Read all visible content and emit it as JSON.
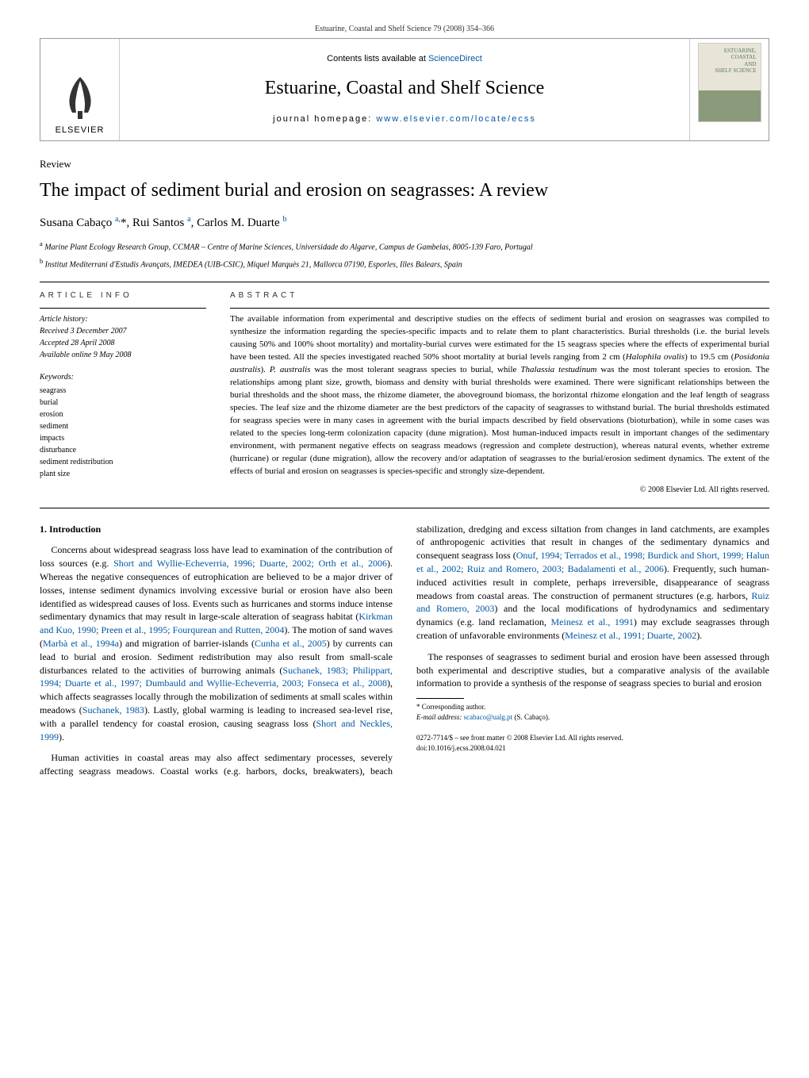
{
  "running_head": "Estuarine, Coastal and Shelf Science 79 (2008) 354–366",
  "header": {
    "contents_prefix": "Contents lists available at ",
    "contents_link": "ScienceDirect",
    "journal_title": "Estuarine, Coastal and Shelf Science",
    "homepage_prefix": "journal homepage: ",
    "homepage_link": "www.elsevier.com/locate/ecss",
    "publisher": "ELSEVIER",
    "cover_text_line1": "ESTUARINE,",
    "cover_text_line2": "COASTAL",
    "cover_text_line3": "AND",
    "cover_text_line4": "SHELF SCIENCE"
  },
  "article_type": "Review",
  "title": "The impact of sediment burial and erosion on seagrasses: A review",
  "authors_html": "Susana Cabaço <sup>a,</sup>*, Rui Santos <sup>a</sup>, Carlos M. Duarte <sup>b</sup>",
  "affiliations": {
    "a": "Marine Plant Ecology Research Group, CCMAR – Centre of Marine Sciences, Universidade do Algarve, Campus de Gambelas, 8005-139 Faro, Portugal",
    "b": "Institut Mediterrani d'Estudis Avançats, IMEDEA (UIB-CSIC), Miquel Marquès 21, Mallorca 07190, Esporles, Illes Balears, Spain"
  },
  "article_info": {
    "heading": "ARTICLE INFO",
    "history_label": "Article history:",
    "received": "Received 3 December 2007",
    "accepted": "Accepted 28 April 2008",
    "online": "Available online 9 May 2008",
    "keywords_label": "Keywords:",
    "keywords": [
      "seagrass",
      "burial",
      "erosion",
      "sediment",
      "impacts",
      "disturbance",
      "sediment redistribution",
      "plant size"
    ]
  },
  "abstract": {
    "heading": "ABSTRACT",
    "text": "The available information from experimental and descriptive studies on the effects of sediment burial and erosion on seagrasses was compiled to synthesize the information regarding the species-specific impacts and to relate them to plant characteristics. Burial thresholds (i.e. the burial levels causing 50% and 100% shoot mortality) and mortality-burial curves were estimated for the 15 seagrass species where the effects of experimental burial have been tested. All the species investigated reached 50% shoot mortality at burial levels ranging from 2 cm (Halophila ovalis) to 19.5 cm (Posidonia australis). P. australis was the most tolerant seagrass species to burial, while Thalassia testudinum was the most tolerant species to erosion. The relationships among plant size, growth, biomass and density with burial thresholds were examined. There were significant relationships between the burial thresholds and the shoot mass, the rhizome diameter, the aboveground biomass, the horizontal rhizome elongation and the leaf length of seagrass species. The leaf size and the rhizome diameter are the best predictors of the capacity of seagrasses to withstand burial. The burial thresholds estimated for seagrass species were in many cases in agreement with the burial impacts described by field observations (bioturbation), while in some cases was related to the species long-term colonization capacity (dune migration). Most human-induced impacts result in important changes of the sedimentary environment, with permanent negative effects on seagrass meadows (regression and complete destruction), whereas natural events, whether extreme (hurricane) or regular (dune migration), allow the recovery and/or adaptation of seagrasses to the burial/erosion sediment dynamics. The extent of the effects of burial and erosion on seagrasses is species-specific and strongly size-dependent.",
    "copyright": "© 2008 Elsevier Ltd. All rights reserved."
  },
  "section1": {
    "heading": "1. Introduction",
    "p1_pre": "Concerns about widespread seagrass loss have lead to examination of the contribution of loss sources (e.g. ",
    "p1_ref1": "Short and Wyllie-Echeverria, 1996; Duarte, 2002; Orth et al., 2006",
    "p1_mid1": "). Whereas the negative consequences of eutrophication are believed to be a major driver of losses, intense sediment dynamics involving excessive burial or erosion have also been identified as widespread causes of loss. Events such as hurricanes and storms induce intense sedimentary dynamics that may result in large-scale alteration of seagrass habitat (",
    "p1_ref2": "Kirkman and Kuo, 1990; Preen et al., 1995; Fourqurean and Rutten, 2004",
    "p1_mid2": "). The motion of sand waves (",
    "p1_ref3": "Marbà et al., 1994a",
    "p1_mid3": ") and migration of barrier-islands (",
    "p1_ref4": "Cunha et al., 2005",
    "p1_mid4": ") by currents can lead to burial and erosion. Sediment redistribution may also result from small-scale disturbances related to the activities of burrowing animals (",
    "p1_ref5": "Suchanek, 1983; Philippart, 1994; Duarte et al., 1997; Dumbauld and Wyllie-Echeverria, 2003; Fonseca et al., 2008",
    "p1_mid5": "), which affects seagrasses locally through the mobilization of sediments at small scales within meadows (",
    "p1_ref6": "Suchanek, 1983",
    "p1_end": "). Lastly,",
    "p1b_pre": "global warming is leading to increased sea-level rise, with a parallel tendency for coastal erosion, causing seagrass loss (",
    "p1b_ref": "Short and Neckles, 1999",
    "p1b_end": ").",
    "p2_pre": "Human activities in coastal areas may also affect sedimentary processes, severely affecting seagrass meadows. Coastal works (e.g. harbors, docks, breakwaters), beach stabilization, dredging and excess siltation from changes in land catchments, are examples of anthropogenic activities that result in changes of the sedimentary dynamics and consequent seagrass loss (",
    "p2_ref1": "Onuf, 1994; Terrados et al., 1998; Burdick and Short, 1999; Halun et al., 2002; Ruiz and Romero, 2003; Badalamenti et al., 2006",
    "p2_mid1": "). Frequently, such human-induced activities result in complete, perhaps irreversible, disappearance of seagrass meadows from coastal areas. The construction of permanent structures (e.g. harbors, ",
    "p2_ref2": "Ruiz and Romero, 2003",
    "p2_mid2": ") and the local modifications of hydrodynamics and sedimentary dynamics (e.g. land reclamation, ",
    "p2_ref3": "Meinesz et al., 1991",
    "p2_mid3": ") may exclude seagrasses through creation of unfavorable environments (",
    "p2_ref4": "Meinesz et al., 1991; Duarte, 2002",
    "p2_end": ").",
    "p3": "The responses of seagrasses to sediment burial and erosion have been assessed through both experimental and descriptive studies, but a comparative analysis of the available information to provide a synthesis of the response of seagrass species to burial and erosion"
  },
  "footnote": {
    "corr": "* Corresponding author.",
    "email_label": "E-mail address:",
    "email": "scabaco@ualg.pt",
    "email_name": "(S. Cabaço)."
  },
  "bottom": {
    "issn": "0272-7714/$ – see front matter © 2008 Elsevier Ltd. All rights reserved.",
    "doi": "doi:10.1016/j.ecss.2008.04.021"
  },
  "colors": {
    "link": "#0056a3",
    "text": "#000000",
    "background": "#ffffff",
    "rule": "#000000"
  }
}
